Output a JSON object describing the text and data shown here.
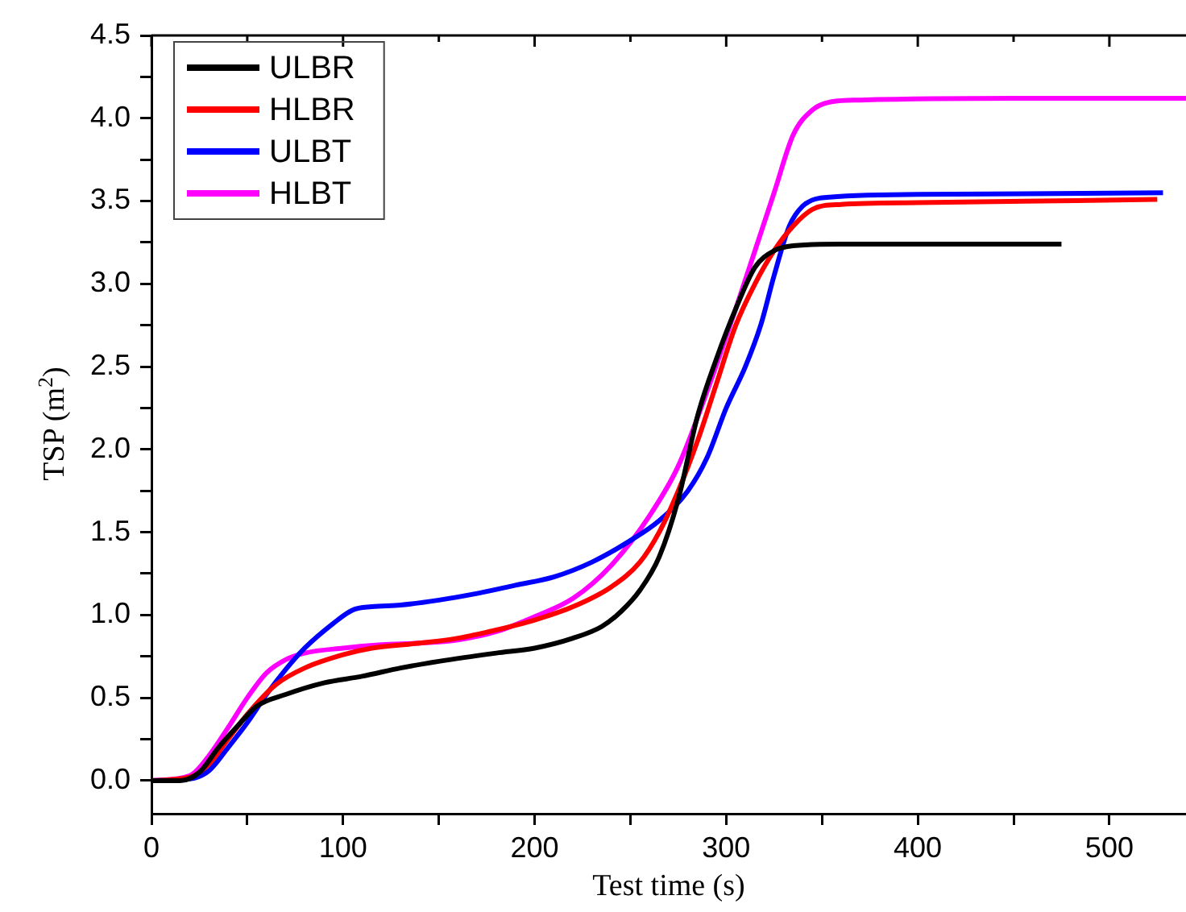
{
  "chart_data": {
    "type": "line",
    "xlabel": "Test time (s)",
    "ylabel": "TSP (m$^{2}$)",
    "xlim": [
      0,
      540
    ],
    "xticks": [
      0,
      {
        "value": 50,
        "label": null
      },
      100,
      {
        "value": 150,
        "label": null
      },
      200,
      {
        "value": 250,
        "label": null
      },
      300,
      {
        "value": 350,
        "label": null
      },
      400,
      {
        "value": 450,
        "label": null
      },
      500
    ],
    "ylim": [
      -0.2,
      4.5
    ],
    "yticks": [
      {
        "value": 0,
        "label": "0.0"
      },
      {
        "value": 0.25,
        "label": null
      },
      {
        "value": 0.5,
        "label": "0.5"
      },
      {
        "value": 0.75,
        "label": null
      },
      {
        "value": 1,
        "label": "1.0"
      },
      {
        "value": 1.25,
        "label": null
      },
      {
        "value": 1.5,
        "label": "1.5"
      },
      {
        "value": 1.75,
        "label": null
      },
      {
        "value": 2,
        "label": "2.0"
      },
      {
        "value": 2.25,
        "label": null
      },
      {
        "value": 2.5,
        "label": "2.5"
      },
      {
        "value": 2.75,
        "label": null
      },
      {
        "value": 3,
        "label": "3.0"
      },
      {
        "value": 3.25,
        "label": null
      },
      {
        "value": 3.5,
        "label": "3.5"
      },
      {
        "value": 3.75,
        "label": null
      },
      {
        "value": 4,
        "label": "4.0"
      },
      {
        "value": 4.25,
        "label": null
      },
      {
        "value": 4.5,
        "label": "4.5"
      }
    ],
    "legend": "top left",
    "marker": "none",
    "line_style": "solid",
    "series": [
      {
        "name": "ULBR",
        "color": "#000000",
        "x": [
          0,
          15,
          25,
          35,
          45,
          55,
          70,
          90,
          110,
          130,
          150,
          180,
          200,
          220,
          235,
          245,
          255,
          265,
          275,
          285,
          295,
          305,
          315,
          325,
          335,
          360,
          475
        ],
        "values": [
          0,
          0,
          0.05,
          0.2,
          0.33,
          0.45,
          0.52,
          0.59,
          0.63,
          0.68,
          0.72,
          0.77,
          0.8,
          0.86,
          0.93,
          1.02,
          1.15,
          1.35,
          1.7,
          2.2,
          2.55,
          2.85,
          3.1,
          3.2,
          3.23,
          3.24,
          3.24
        ]
      },
      {
        "name": "HLBR",
        "color": "#ff0000",
        "x": [
          0,
          20,
          30,
          40,
          50,
          65,
          80,
          100,
          115,
          140,
          160,
          180,
          200,
          220,
          240,
          255,
          265,
          275,
          285,
          295,
          305,
          315,
          325,
          335,
          345,
          360,
          400,
          525
        ],
        "values": [
          0,
          0.02,
          0.1,
          0.25,
          0.4,
          0.58,
          0.68,
          0.76,
          0.8,
          0.83,
          0.86,
          0.91,
          0.97,
          1.05,
          1.17,
          1.32,
          1.5,
          1.75,
          2.05,
          2.4,
          2.75,
          3.0,
          3.2,
          3.35,
          3.45,
          3.48,
          3.49,
          3.51
        ]
      },
      {
        "name": "ULBT",
        "color": "#0000ff",
        "x": [
          0,
          20,
          30,
          40,
          50,
          60,
          70,
          80,
          95,
          105,
          115,
          130,
          150,
          170,
          190,
          210,
          230,
          250,
          265,
          280,
          290,
          300,
          310,
          318,
          325,
          333,
          340,
          350,
          400,
          528
        ],
        "values": [
          0,
          0.01,
          0.06,
          0.2,
          0.35,
          0.52,
          0.67,
          0.8,
          0.95,
          1.03,
          1.05,
          1.06,
          1.09,
          1.13,
          1.18,
          1.23,
          1.32,
          1.45,
          1.57,
          1.75,
          1.95,
          2.25,
          2.5,
          2.75,
          3.05,
          3.35,
          3.47,
          3.52,
          3.54,
          3.55
        ]
      },
      {
        "name": "HLBT",
        "color": "#ff00ff",
        "x": [
          0,
          20,
          30,
          40,
          50,
          60,
          70,
          80,
          100,
          120,
          140,
          160,
          180,
          200,
          220,
          240,
          260,
          275,
          290,
          305,
          315,
          325,
          335,
          345,
          355,
          370,
          450,
          540
        ],
        "values": [
          0,
          0.03,
          0.15,
          0.32,
          0.5,
          0.65,
          0.73,
          0.77,
          0.8,
          0.82,
          0.83,
          0.85,
          0.9,
          0.99,
          1.1,
          1.3,
          1.6,
          1.9,
          2.35,
          2.85,
          3.2,
          3.55,
          3.9,
          4.05,
          4.1,
          4.11,
          4.12,
          4.12
        ]
      }
    ]
  }
}
